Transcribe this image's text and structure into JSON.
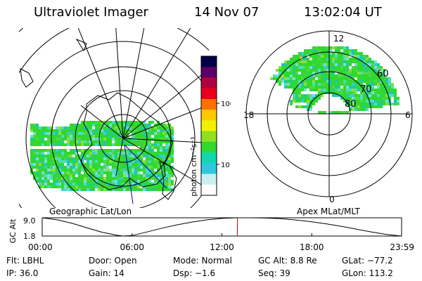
{
  "header": {
    "instrument": "Ultraviolet Imager",
    "date": "14 Nov 07",
    "time": "13:02:04 UT"
  },
  "colorbar": {
    "unit_label": "photon cm⁻²s⁻¹",
    "tick_labels": [
      "100",
      "10"
    ],
    "log_scale": true,
    "colors": [
      "#000044",
      "#5a0066",
      "#b00040",
      "#e8001a",
      "#ff7000",
      "#ffc800",
      "#f0f000",
      "#90e020",
      "#30d830",
      "#10d8b0",
      "#30c8e0",
      "#c8f0f0",
      "#ffffff"
    ]
  },
  "panels": {
    "geographic_label": "Geographic Lat/Lon",
    "apex_label": "Apex MLat/MLT",
    "apex_lat_labels": [
      "60",
      "70",
      "80"
    ],
    "apex_mlt_labels": [
      "12",
      "18",
      "6",
      "0"
    ]
  },
  "chart_data": {
    "type": "line",
    "title": "",
    "ylabel": "GC Alt",
    "yticks": [
      "9.0",
      "1.8"
    ],
    "ylim": [
      1.8,
      9.0
    ],
    "xlim": [
      0,
      24
    ],
    "xticks": [
      "00:00",
      "06:00",
      "12:00",
      "18:00",
      "23:59"
    ],
    "series": [
      {
        "x": [
          0,
          1,
          2,
          3,
          4,
          5,
          5.4,
          6,
          7,
          8,
          9,
          10,
          11,
          12,
          13,
          14,
          15,
          16,
          17,
          18,
          19,
          20,
          21,
          22,
          23,
          23.98
        ],
        "y": [
          9.0,
          8.2,
          6.8,
          5.0,
          3.3,
          2.1,
          1.8,
          2.0,
          3.4,
          4.9,
          6.2,
          7.3,
          8.2,
          8.75,
          9.0,
          9.0,
          8.9,
          8.6,
          8.1,
          7.4,
          6.6,
          5.6,
          4.5,
          3.4,
          2.4,
          1.8
        ]
      }
    ],
    "marker": {
      "x": 13.03,
      "color": "#c00000"
    }
  },
  "footer": {
    "rows": [
      [
        "Flt: LBHL",
        "Door: Open",
        "Mode: Normal",
        "GC Alt: 8.8 Re",
        "GLat: −77.2"
      ],
      [
        "IP: 36.0",
        "Gain: 14",
        "Dsp:    −1.6",
        "Seq: 39",
        "GLon: 113.2"
      ]
    ]
  }
}
